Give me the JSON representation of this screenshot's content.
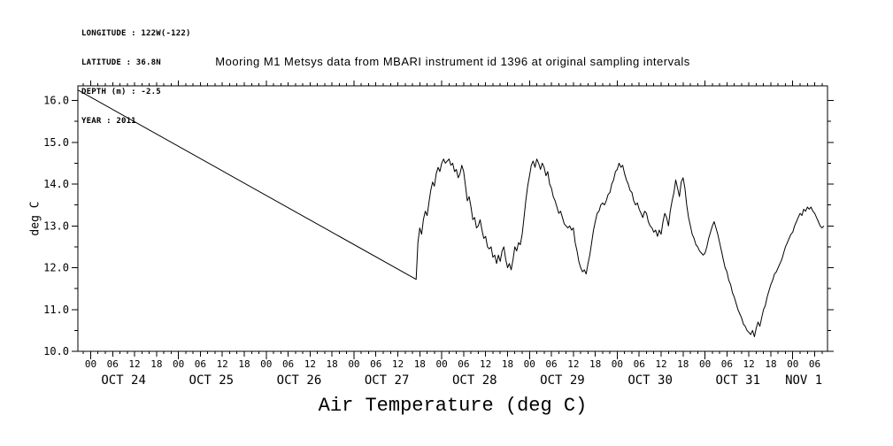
{
  "page": {
    "background": "#ffffff",
    "foreground": "#000000"
  },
  "meta": {
    "lines": [
      "LONGITUDE : 122W(-122)",
      "LATITUDE : 36.8N",
      "DEPTH (m) : -2.5",
      "YEAR : 2011"
    ]
  },
  "chart_data": {
    "type": "line",
    "title": "Mooring M1 Metsys data from MBARI instrument id 1396 at original sampling intervals",
    "xlabel": "Air Temperature (deg C)",
    "ylabel": "deg C",
    "grid": false,
    "legend": false,
    "x_axis": {
      "unit": "hours since 2011-10-24 00:00",
      "xlim": [
        -3.5,
        201.5
      ],
      "major_tick_interval_hours": 6,
      "minor_tick_interval_hours": 2,
      "hour_tick_labels": [
        "00",
        "06",
        "12",
        "18"
      ],
      "day_labels": [
        {
          "label": "OCT 24",
          "hour": 9
        },
        {
          "label": "OCT 25",
          "hour": 33
        },
        {
          "label": "OCT 26",
          "hour": 57
        },
        {
          "label": "OCT 27",
          "hour": 81
        },
        {
          "label": "OCT 28",
          "hour": 105
        },
        {
          "label": "OCT 29",
          "hour": 129
        },
        {
          "label": "OCT 30",
          "hour": 153
        },
        {
          "label": "OCT 31",
          "hour": 177
        },
        {
          "label": "NOV 1",
          "hour": 195
        }
      ]
    },
    "y_axis": {
      "ylim": [
        10.0,
        16.35
      ],
      "ticks": [
        10.0,
        11.0,
        12.0,
        13.0,
        14.0,
        15.0,
        16.0
      ],
      "minor_tick_interval": 0.5,
      "tick_format": "one-decimal"
    },
    "series": [
      {
        "name": "air temperature",
        "color": "#000000",
        "gap_interpolation_segment": [
          [
            -3.5,
            16.25
          ],
          [
            89.0,
            11.72
          ]
        ],
        "resume_start_hour": 89.5,
        "sample_step_hours": 0.5,
        "values": [
          12.6,
          12.95,
          12.8,
          13.15,
          13.35,
          13.25,
          13.55,
          13.85,
          14.05,
          13.95,
          14.25,
          14.4,
          14.3,
          14.5,
          14.6,
          14.5,
          14.55,
          14.6,
          14.45,
          14.5,
          14.3,
          14.35,
          14.15,
          14.25,
          14.45,
          14.3,
          13.95,
          13.6,
          13.7,
          13.45,
          13.15,
          13.2,
          12.95,
          13.0,
          13.15,
          12.9,
          12.7,
          12.75,
          12.5,
          12.45,
          12.5,
          12.25,
          12.3,
          12.1,
          12.3,
          12.15,
          12.4,
          12.5,
          12.2,
          12.0,
          12.1,
          11.95,
          12.2,
          12.5,
          12.4,
          12.6,
          12.55,
          12.8,
          13.2,
          13.6,
          13.95,
          14.2,
          14.45,
          14.55,
          14.4,
          14.6,
          14.5,
          14.35,
          14.5,
          14.4,
          14.2,
          14.3,
          14.0,
          13.9,
          13.7,
          13.6,
          13.45,
          13.3,
          13.35,
          13.2,
          13.05,
          13.0,
          12.95,
          13.0,
          12.9,
          12.95,
          12.6,
          12.4,
          12.15,
          12.0,
          11.9,
          11.95,
          11.85,
          12.1,
          12.3,
          12.6,
          12.9,
          13.1,
          13.3,
          13.35,
          13.5,
          13.55,
          13.5,
          13.6,
          13.75,
          13.8,
          14.0,
          14.1,
          14.3,
          14.35,
          14.5,
          14.4,
          14.45,
          14.25,
          14.1,
          14.0,
          13.85,
          13.8,
          13.6,
          13.5,
          13.55,
          13.4,
          13.3,
          13.2,
          13.35,
          13.3,
          13.1,
          13.0,
          12.95,
          12.85,
          12.9,
          12.75,
          12.9,
          12.8,
          13.1,
          13.3,
          13.2,
          13.0,
          13.35,
          13.6,
          13.8,
          14.1,
          13.9,
          13.7,
          14.05,
          14.15,
          13.9,
          13.5,
          13.2,
          13.0,
          12.8,
          12.7,
          12.55,
          12.5,
          12.4,
          12.35,
          12.3,
          12.35,
          12.5,
          12.7,
          12.85,
          13.0,
          13.1,
          12.95,
          12.8,
          12.6,
          12.4,
          12.2,
          12.0,
          11.9,
          11.7,
          11.6,
          11.4,
          11.3,
          11.15,
          11.0,
          10.9,
          10.8,
          10.65,
          10.6,
          10.5,
          10.45,
          10.4,
          10.5,
          10.35,
          10.55,
          10.7,
          10.6,
          10.8,
          11.0,
          11.1,
          11.3,
          11.45,
          11.6,
          11.7,
          11.85,
          11.9,
          12.0,
          12.1,
          12.2,
          12.35,
          12.5,
          12.6,
          12.7,
          12.8,
          12.85,
          13.0,
          13.1,
          13.2,
          13.3,
          13.25,
          13.4,
          13.35,
          13.45,
          13.4,
          13.45,
          13.35,
          13.3,
          13.2,
          13.1,
          13.0,
          12.95,
          13.0
        ]
      }
    ]
  }
}
